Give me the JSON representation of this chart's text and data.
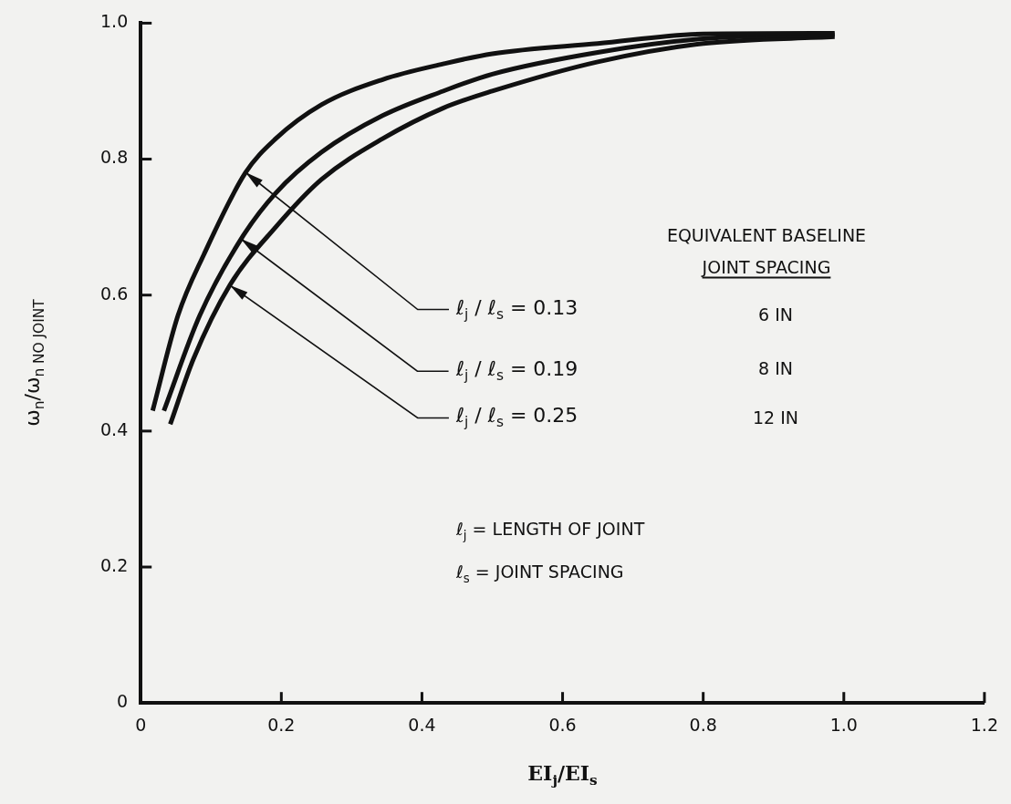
{
  "chart_data": {
    "type": "line",
    "xlabel": "EI$_{j}$/EI$_{s}$",
    "ylabel": "ω$_{n}$/ω$_{n NO JOINT}$",
    "xlim": [
      0,
      1.2
    ],
    "xticks": [
      0,
      0.2,
      0.4,
      0.6,
      0.8,
      {
        "value": 1,
        "label": "1.0"
      },
      1.2
    ],
    "ylim": [
      0,
      1
    ],
    "yticks": [
      0,
      0.2,
      0.4,
      0.6,
      0.8,
      {
        "value": 1,
        "label": "1.0"
      }
    ],
    "grid": false,
    "legend": false,
    "marker": "none",
    "line_style": "solid",
    "series": [
      {
        "color": "#111111",
        "x": [
          0.017,
          0.053,
          0.09,
          0.149,
          0.192,
          0.257,
          0.344,
          0.43,
          0.5,
          0.65,
          0.8,
          0.987
        ],
        "values": [
          0.43,
          0.57,
          0.66,
          0.78,
          0.83,
          0.88,
          0.917,
          0.94,
          0.955,
          0.97,
          0.984,
          0.985
        ]
      },
      {
        "color": "#111111",
        "x": [
          0.033,
          0.084,
          0.143,
          0.192,
          0.257,
          0.344,
          0.43,
          0.5,
          0.65,
          0.8,
          0.987
        ],
        "values": [
          0.43,
          0.57,
          0.683,
          0.75,
          0.81,
          0.864,
          0.9,
          0.925,
          0.957,
          0.977,
          0.983
        ]
      },
      {
        "color": "#111111",
        "x": [
          0.042,
          0.075,
          0.127,
          0.192,
          0.257,
          0.344,
          0.43,
          0.5,
          0.65,
          0.8,
          0.987
        ],
        "values": [
          0.41,
          0.506,
          0.615,
          0.7,
          0.77,
          0.83,
          0.875,
          0.9,
          0.943,
          0.97,
          0.98
        ]
      }
    ],
    "annotations": [
      {
        "text": "ℓ$_{j}$ / ℓ$_{s}$  =  0.13",
        "x": 0.149,
        "y": 0.78
      },
      {
        "text": "ℓ$_{j}$ / ℓ$_{s}$  =  0.19",
        "x": 0.143,
        "y": 0.683
      },
      {
        "text": "ℓ$_{j}$ / ℓ$_{s}$  =  0.25",
        "x": 0.127,
        "y": 0.615
      },
      "EQUIVALENT BASELINE",
      "JOINT SPACING",
      "6 IN",
      "8 IN",
      "12 IN",
      "ℓ$_{j}$ = LENGTH OF JOINT",
      "ℓ$_{s}$ = JOINT SPACING"
    ]
  }
}
